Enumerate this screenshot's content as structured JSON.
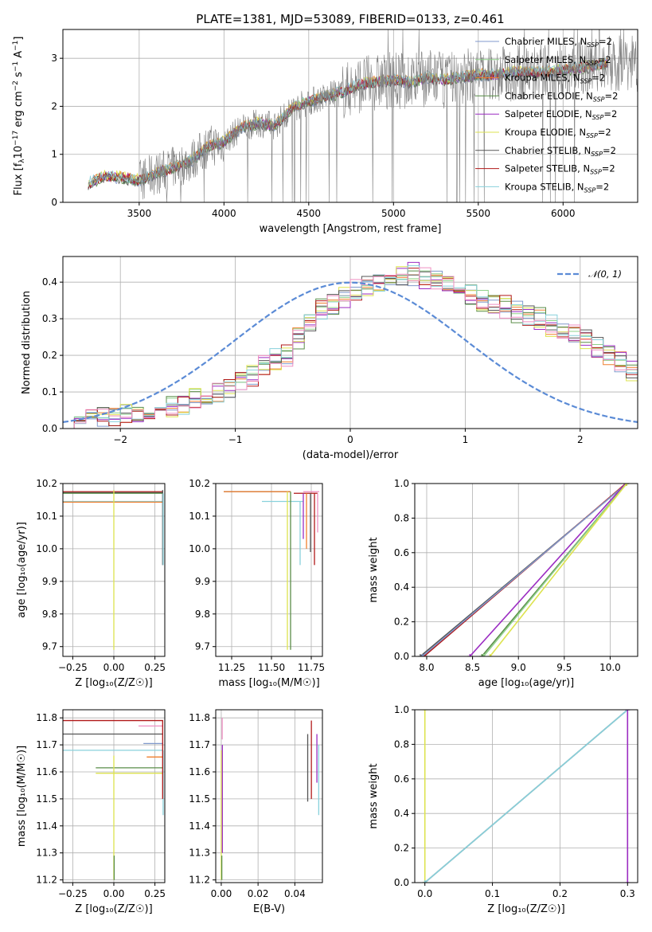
{
  "colors": {
    "Chabrier MILES": "#8099cc",
    "Salpeter MILES": "#8fd18a",
    "Kroupa MILES": "#f07f2e",
    "Chabrier ELODIE": "#5a8d48",
    "Salpeter ELODIE": "#9b2cc2",
    "Kroupa ELODIE": "#dde34f",
    "Chabrier STELIB": "#555555",
    "Salpeter STELIB": "#b11818",
    "Kroupa STELIB": "#88d1dc",
    "extra_pink": "#ef8fc2",
    "normal_curve": "#5b8bd6",
    "data_spectrum": "#808080"
  },
  "chart_data": [
    {
      "id": "spectrum",
      "type": "line",
      "title": "PLATE=1381, MJD=53089, FIBERID=0133, z=0.461",
      "xlabel": "wavelength [Angstrom, rest frame]",
      "ylabel_parts": [
        "Flux [f",
        "λ",
        "10",
        "−17",
        " erg cm",
        "−2",
        " s",
        "−1",
        " A",
        "−1",
        "]"
      ],
      "xlim": [
        3050,
        6440
      ],
      "ylim": [
        0,
        3.6
      ],
      "xticks": [
        "3500",
        "4000",
        "4500",
        "5000",
        "5500",
        "6000"
      ],
      "xtick_values": [
        3500,
        4000,
        4500,
        5000,
        5500,
        6000
      ],
      "yticks": [
        "0",
        "1",
        "2",
        "3"
      ],
      "ytick_values": [
        0,
        1,
        2,
        3
      ],
      "legend": [
        {
          "name": "Chabrier MILES",
          "text": "Chabrier MILES, N",
          "sub": "SSP",
          "tail": "=2"
        },
        {
          "name": "Salpeter MILES",
          "text": "Salpeter MILES, N",
          "sub": "SSP",
          "tail": "=2"
        },
        {
          "name": "Kroupa MILES",
          "text": "Kroupa MILES, N",
          "sub": "SSP",
          "tail": "=2"
        },
        {
          "name": "Chabrier ELODIE",
          "text": "Chabrier ELODIE, N",
          "sub": "SSP",
          "tail": "=2"
        },
        {
          "name": "Salpeter ELODIE",
          "text": "Salpeter ELODIE, N",
          "sub": "SSP",
          "tail": "=2"
        },
        {
          "name": "Kroupa ELODIE",
          "text": "Kroupa ELODIE, N",
          "sub": "SSP",
          "tail": "=2"
        },
        {
          "name": "Chabrier STELIB",
          "text": "Chabrier STELIB, N",
          "sub": "SSP",
          "tail": "=2"
        },
        {
          "name": "Salpeter STELIB",
          "text": "Salpeter STELIB, N",
          "sub": "SSP",
          "tail": "=2"
        },
        {
          "name": "Kroupa STELIB",
          "text": "Kroupa STELIB, N",
          "sub": "SSP",
          "tail": "=2"
        }
      ],
      "continuum": [
        [
          3200,
          0.4
        ],
        [
          3300,
          0.55
        ],
        [
          3400,
          0.52
        ],
        [
          3500,
          0.45
        ],
        [
          3600,
          0.6
        ],
        [
          3700,
          0.72
        ],
        [
          3800,
          0.85
        ],
        [
          3900,
          1.15
        ],
        [
          4000,
          1.25
        ],
        [
          4100,
          1.55
        ],
        [
          4200,
          1.65
        ],
        [
          4300,
          1.6
        ],
        [
          4400,
          1.95
        ],
        [
          4500,
          2.1
        ],
        [
          4600,
          2.2
        ],
        [
          4700,
          2.3
        ],
        [
          4800,
          2.45
        ],
        [
          4900,
          2.5
        ],
        [
          5000,
          2.55
        ],
        [
          5100,
          2.5
        ],
        [
          5200,
          2.6
        ],
        [
          5300,
          2.55
        ],
        [
          5400,
          2.6
        ],
        [
          5500,
          2.65
        ],
        [
          5600,
          2.65
        ],
        [
          5700,
          2.7
        ],
        [
          5800,
          2.7
        ],
        [
          5900,
          2.72
        ],
        [
          6000,
          2.75
        ],
        [
          6100,
          2.8
        ],
        [
          6200,
          2.85
        ],
        [
          6270,
          2.9
        ]
      ],
      "model_xmax": 6270
    },
    {
      "id": "residuals",
      "type": "line",
      "xlabel": "(data-model)/error",
      "ylabel": "Normed distribution",
      "xlim": [
        -2.5,
        2.5
      ],
      "ylim": [
        0,
        0.47
      ],
      "xticks": [
        "−2",
        "−1",
        "0",
        "1",
        "2"
      ],
      "xtick_values": [
        -2,
        -1,
        0,
        1,
        2
      ],
      "yticks": [
        "0.0",
        "0.1",
        "0.2",
        "0.3",
        "0.4"
      ],
      "ytick_values": [
        0,
        0.1,
        0.2,
        0.3,
        0.4
      ],
      "bin_width": 0.1,
      "x_start": -2.5,
      "base_hist": [
        0.02,
        0.025,
        0.03,
        0.033,
        0.035,
        0.04,
        0.045,
        0.05,
        0.055,
        0.06,
        0.07,
        0.08,
        0.09,
        0.1,
        0.11,
        0.13,
        0.15,
        0.17,
        0.19,
        0.2,
        0.25,
        0.29,
        0.33,
        0.34,
        0.36,
        0.38,
        0.39,
        0.4,
        0.41,
        0.42,
        0.42,
        0.41,
        0.4,
        0.39,
        0.37,
        0.36,
        0.35,
        0.34,
        0.33,
        0.32,
        0.31,
        0.3,
        0.28,
        0.27,
        0.26,
        0.24,
        0.22,
        0.2,
        0.18,
        0.16,
        0.15,
        0.13,
        0.12,
        0.1,
        0.09,
        0.08,
        0.07,
        0.06,
        0.05,
        0.045,
        0.04,
        0.035,
        0.03,
        0.028,
        0.026,
        0.025,
        0.024,
        0.023,
        0.022,
        0.021,
        0.02,
        0.02,
        0.02,
        0.02,
        0.02,
        0.02,
        0.02,
        0.02,
        0.02,
        0.02
      ],
      "legend_label": "𝒩(0, 1)"
    },
    {
      "id": "age-vs-Z",
      "type": "line",
      "xlabel": "Z [log₁₀(Z/Z☉)]",
      "ylabel": "age  [log₁₀(age/yr)]",
      "xlim": [
        -0.31,
        0.31
      ],
      "ylim": [
        9.67,
        10.2
      ],
      "xticks": [
        "−0.25",
        "0.00",
        "0.25"
      ],
      "xtick_values": [
        -0.25,
        0,
        0.25
      ],
      "yticks": [
        "9.7",
        "9.8",
        "9.9",
        "10.0",
        "10.1",
        "10.2"
      ],
      "ytick_values": [
        9.7,
        9.8,
        9.9,
        10.0,
        10.1,
        10.2
      ],
      "h_segments": [
        {
          "s": "Salpeter STELIB",
          "y": 10.175,
          "x0": -0.31,
          "x1": 0.3
        },
        {
          "s": "Chabrier STELIB",
          "y": 10.172,
          "x0": -0.31,
          "x1": 0.3
        },
        {
          "s": "Chabrier ELODIE",
          "y": 10.17,
          "x0": -0.31,
          "x1": 0.3
        },
        {
          "s": "Kroupa STELIB",
          "y": 10.145,
          "x0": -0.31,
          "x1": 0.3
        },
        {
          "s": "Kroupa MILES",
          "y": 10.143,
          "x0": -0.31,
          "x1": 0.3
        }
      ],
      "v_segments": [
        {
          "s": "Kroupa ELODIE",
          "x": 0.0,
          "y0": 9.69,
          "y1": 10.18
        },
        {
          "s": "Chabrier STELIB",
          "x": 0.297,
          "y0": 9.95,
          "y1": 10.18
        },
        {
          "s": "Kroupa STELIB",
          "x": 0.3,
          "y0": 9.95,
          "y1": 10.17
        }
      ]
    },
    {
      "id": "age-vs-mass",
      "type": "line",
      "xlabel": "mass [log₁₀(M/M☉)]",
      "ylabel": "",
      "xlim": [
        11.15,
        11.82
      ],
      "ylim": [
        9.67,
        10.2
      ],
      "xticks": [
        "11.25",
        "11.50",
        "11.75"
      ],
      "xtick_values": [
        11.25,
        11.5,
        11.75
      ],
      "yticks": [
        "9.7",
        "9.8",
        "9.9",
        "10.0",
        "10.1",
        "10.2"
      ],
      "ytick_values": [
        9.7,
        9.8,
        9.9,
        10.0,
        10.1,
        10.2
      ],
      "h_segments": [
        {
          "s": "Chabrier STELIB",
          "y": 10.175,
          "x0": 11.2,
          "x1": 11.62
        },
        {
          "s": "Kroupa MILES",
          "y": 10.175,
          "x0": 11.2,
          "x1": 11.62
        },
        {
          "s": "Salpeter STELIB",
          "y": 10.17,
          "x0": 11.64,
          "x1": 11.79
        },
        {
          "s": "Kroupa STELIB",
          "y": 10.145,
          "x0": 11.44,
          "x1": 11.7
        },
        {
          "s": "extra_pink",
          "y": 10.175,
          "x0": 11.7,
          "x1": 11.8
        }
      ],
      "v_segments": [
        {
          "s": "Kroupa ELODIE",
          "x": 11.6,
          "y0": 9.69,
          "y1": 10.175
        },
        {
          "s": "Chabrier ELODIE",
          "x": 11.62,
          "y0": 9.69,
          "y1": 10.175
        },
        {
          "s": "Kroupa STELIB",
          "x": 11.68,
          "y0": 9.95,
          "y1": 10.145
        },
        {
          "s": "Salpeter ELODIE",
          "x": 11.7,
          "y0": 10.03,
          "y1": 10.17
        },
        {
          "s": "Kroupa MILES",
          "x": 11.72,
          "y0": 10.0,
          "y1": 10.17
        },
        {
          "s": "Chabrier STELIB",
          "x": 11.745,
          "y0": 9.99,
          "y1": 10.17
        },
        {
          "s": "Salpeter STELIB",
          "x": 11.77,
          "y0": 9.95,
          "y1": 10.17
        },
        {
          "s": "extra_pink",
          "x": 11.79,
          "y0": 10.05,
          "y1": 10.17
        }
      ]
    },
    {
      "id": "weight-vs-age",
      "type": "line",
      "xlabel": "age  [log₁₀(age/yr)]",
      "ylabel": "mass weight",
      "xlim": [
        7.87,
        10.3
      ],
      "ylim": [
        0,
        1
      ],
      "xticks": [
        "8.0",
        "8.5",
        "9.0",
        "9.5",
        "10.0"
      ],
      "xtick_values": [
        8.0,
        8.5,
        9.0,
        9.5,
        10.0
      ],
      "yticks": [
        "0.0",
        "0.2",
        "0.4",
        "0.6",
        "0.8",
        "1.0"
      ],
      "ytick_values": [
        0,
        0.2,
        0.4,
        0.6,
        0.8,
        1.0
      ],
      "lines": [
        {
          "s": "Chabrier STELIB",
          "x0": 7.93,
          "x1": 10.18
        },
        {
          "s": "Salpeter STELIB",
          "x0": 7.97,
          "x1": 10.17
        },
        {
          "s": "Chabrier MILES",
          "x0": 7.95,
          "x1": 10.18
        },
        {
          "s": "Salpeter ELODIE",
          "x0": 8.47,
          "x1": 10.17
        },
        {
          "s": "Chabrier ELODIE",
          "x0": 8.6,
          "x1": 10.18
        },
        {
          "s": "Salpeter MILES",
          "x0": 8.62,
          "x1": 10.18
        },
        {
          "s": "Kroupa ELODIE",
          "x0": 8.69,
          "x1": 10.18
        }
      ]
    },
    {
      "id": "mass-vs-Z",
      "type": "line",
      "xlabel": "Z [log₁₀(Z/Z☉)]",
      "ylabel": "mass [log₁₀(M/M☉)]",
      "xlim": [
        -0.31,
        0.31
      ],
      "ylim": [
        11.19,
        11.83
      ],
      "xticks": [
        "−0.25",
        "0.00",
        "0.25"
      ],
      "xtick_values": [
        -0.25,
        0,
        0.25
      ],
      "yticks": [
        "11.2",
        "11.3",
        "11.4",
        "11.5",
        "11.6",
        "11.7",
        "11.8"
      ],
      "ytick_values": [
        11.2,
        11.3,
        11.4,
        11.5,
        11.6,
        11.7,
        11.8
      ],
      "h_segments": [
        {
          "s": "Salpeter STELIB",
          "y": 11.79,
          "x0": -0.31,
          "x1": 0.3
        },
        {
          "s": "Chabrier STELIB",
          "y": 11.74,
          "x0": -0.31,
          "x1": 0.3
        },
        {
          "s": "Kroupa STELIB",
          "y": 11.68,
          "x0": -0.31,
          "x1": 0.3
        },
        {
          "s": "Chabrier ELODIE",
          "y": 11.615,
          "x0": -0.11,
          "x1": 0.3
        },
        {
          "s": "Kroupa ELODIE",
          "y": 11.595,
          "x0": -0.11,
          "x1": 0.3
        },
        {
          "s": "extra_pink",
          "y": 11.77,
          "x0": 0.15,
          "x1": 0.3
        },
        {
          "s": "Kroupa MILES",
          "y": 11.655,
          "x0": 0.2,
          "x1": 0.3
        },
        {
          "s": "Chabrier MILES",
          "y": 11.705,
          "x0": 0.18,
          "x1": 0.3
        }
      ],
      "v_segments": [
        {
          "s": "Kroupa ELODIE",
          "x": 0.0,
          "y0": 11.2,
          "y1": 11.66
        },
        {
          "s": "Chabrier ELODIE",
          "x": 0.002,
          "y0": 11.2,
          "y1": 11.29
        },
        {
          "s": "Kroupa STELIB",
          "x": 0.3,
          "y0": 11.44,
          "y1": 11.68
        },
        {
          "s": "Salpeter STELIB",
          "x": 0.297,
          "y0": 11.5,
          "y1": 11.79
        }
      ]
    },
    {
      "id": "mass-vs-EBV",
      "type": "line",
      "xlabel": "E(B-V)",
      "ylabel": "",
      "xlim": [
        -0.003,
        0.055
      ],
      "ylim": [
        11.19,
        11.83
      ],
      "xticks": [
        "0.00",
        "0.02",
        "0.04"
      ],
      "xtick_values": [
        0,
        0.02,
        0.04
      ],
      "yticks": [
        "11.2",
        "11.3",
        "11.4",
        "11.5",
        "11.6",
        "11.7",
        "11.8"
      ],
      "ytick_values": [
        11.2,
        11.3,
        11.4,
        11.5,
        11.6,
        11.7,
        11.8
      ],
      "v_segments": [
        {
          "s": "Kroupa ELODIE",
          "x": 0.0,
          "y0": 11.2,
          "y1": 11.68
        },
        {
          "s": "Chabrier ELODIE",
          "x": 0.0003,
          "y0": 11.2,
          "y1": 11.29
        },
        {
          "s": "extra_pink",
          "x": 0.0005,
          "y0": 11.72,
          "y1": 11.8
        },
        {
          "s": "Salpeter ELODIE",
          "x": 0.0006,
          "y0": 11.3,
          "y1": 11.7
        },
        {
          "s": "Chabrier STELIB",
          "x": 0.047,
          "y0": 11.49,
          "y1": 11.74
        },
        {
          "s": "Salpeter STELIB",
          "x": 0.049,
          "y0": 11.5,
          "y1": 11.79
        },
        {
          "s": "Kroupa STELIB",
          "x": 0.053,
          "y0": 11.44,
          "y1": 11.7
        },
        {
          "s": "Salpeter ELODIE",
          "x": 0.052,
          "y0": 11.56,
          "y1": 11.74
        }
      ]
    },
    {
      "id": "weight-vs-Z",
      "type": "line",
      "xlabel": "Z [log₁₀(Z/Z☉)]",
      "ylabel": "mass weight",
      "xlim": [
        -0.015,
        0.315
      ],
      "ylim": [
        0,
        1
      ],
      "xticks": [
        "0.0",
        "0.1",
        "0.2",
        "0.3"
      ],
      "xtick_values": [
        0,
        0.1,
        0.2,
        0.3
      ],
      "yticks": [
        "0.0",
        "0.2",
        "0.4",
        "0.6",
        "0.8",
        "1.0"
      ],
      "ytick_values": [
        0,
        0.2,
        0.4,
        0.6,
        0.8,
        1.0
      ],
      "lines": [
        {
          "s": "Kroupa ELODIE",
          "pts": [
            [
              0.0,
              0
            ],
            [
              0.0,
              1
            ]
          ]
        },
        {
          "s": "Chabrier STELIB",
          "pts": [
            [
              0.0,
              0
            ],
            [
              0.3,
              1
            ]
          ]
        },
        {
          "s": "Kroupa STELIB",
          "pts": [
            [
              0.0,
              0
            ],
            [
              0.3,
              1
            ]
          ]
        },
        {
          "s": "Salpeter ELODIE",
          "pts": [
            [
              0.3,
              0
            ],
            [
              0.3,
              1
            ]
          ]
        }
      ]
    }
  ]
}
